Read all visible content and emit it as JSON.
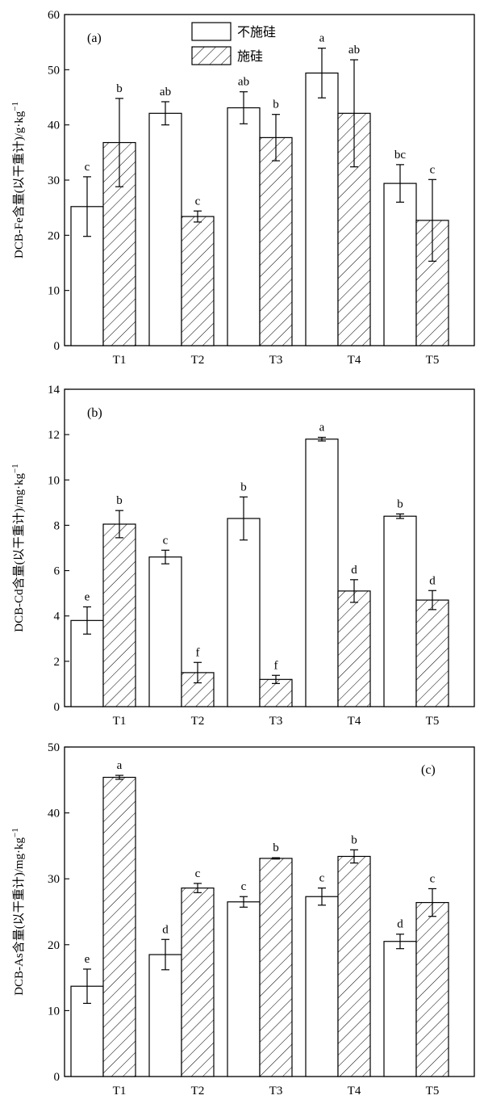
{
  "chart_data": [
    {
      "type": "bar",
      "panel_label": "(a)",
      "ylabel": "DCB-Fe含量(以干重计)/g·kg",
      "ylabel_sup": "−1",
      "ylim": [
        0,
        60
      ],
      "yticks": [
        "0",
        "10",
        "20",
        "30",
        "40",
        "50",
        "60"
      ],
      "categories": [
        "T1",
        "T2",
        "T3",
        "T4",
        "T5"
      ],
      "legend": {
        "position": "top-center",
        "entries": [
          "不施硅",
          "施硅"
        ]
      },
      "series": [
        {
          "name": "不施硅",
          "pattern": "plain",
          "values": [
            25.2,
            42.1,
            43.1,
            49.4,
            29.4
          ],
          "errors": [
            5.4,
            2.1,
            2.9,
            4.5,
            3.4
          ],
          "letters": [
            "c",
            "ab",
            "ab",
            "a",
            "bc"
          ]
        },
        {
          "name": "施硅",
          "pattern": "hatch",
          "values": [
            36.8,
            23.4,
            37.7,
            42.1,
            22.7
          ],
          "errors": [
            8.0,
            1.0,
            4.2,
            9.7,
            7.4
          ],
          "letters": [
            "b",
            "c",
            "b",
            "ab",
            "c"
          ]
        }
      ]
    },
    {
      "type": "bar",
      "panel_label": "(b)",
      "ylabel": "DCB-Cd含量(以干重计)/mg·kg",
      "ylabel_sup": "−1",
      "ylim": [
        0,
        14
      ],
      "yticks": [
        "0",
        "2",
        "4",
        "6",
        "8",
        "10",
        "12",
        "14"
      ],
      "categories": [
        "T1",
        "T2",
        "T3",
        "T4",
        "T5"
      ],
      "series": [
        {
          "name": "不施硅",
          "pattern": "plain",
          "values": [
            3.8,
            6.6,
            8.3,
            11.8,
            8.4
          ],
          "errors": [
            0.6,
            0.3,
            0.95,
            0.08,
            0.1
          ],
          "letters": [
            "e",
            "c",
            "b",
            "a",
            "b"
          ]
        },
        {
          "name": "施硅",
          "pattern": "hatch",
          "values": [
            8.05,
            1.5,
            1.2,
            5.1,
            4.7
          ],
          "errors": [
            0.6,
            0.45,
            0.18,
            0.5,
            0.42
          ],
          "letters": [
            "b",
            "f",
            "f",
            "d",
            "d"
          ]
        }
      ]
    },
    {
      "type": "bar",
      "panel_label": "(c)",
      "ylabel": "DCB-As含量(以干重计)/mg·kg",
      "ylabel_sup": "−1",
      "ylim": [
        0,
        50
      ],
      "yticks": [
        "0",
        "10",
        "20",
        "30",
        "40",
        "50"
      ],
      "categories": [
        "T1",
        "T2",
        "T3",
        "T4",
        "T5"
      ],
      "series": [
        {
          "name": "不施硅",
          "pattern": "plain",
          "values": [
            13.7,
            18.5,
            26.5,
            27.3,
            20.5
          ],
          "errors": [
            2.6,
            2.3,
            0.8,
            1.3,
            1.1
          ],
          "letters": [
            "e",
            "d",
            "c",
            "c",
            "d"
          ]
        },
        {
          "name": "施硅",
          "pattern": "hatch",
          "values": [
            45.4,
            28.6,
            33.1,
            33.4,
            26.4
          ],
          "errors": [
            0.3,
            0.7,
            0.1,
            1.0,
            2.1
          ],
          "letters": [
            "a",
            "c",
            "b",
            "b",
            "c"
          ]
        }
      ]
    }
  ]
}
